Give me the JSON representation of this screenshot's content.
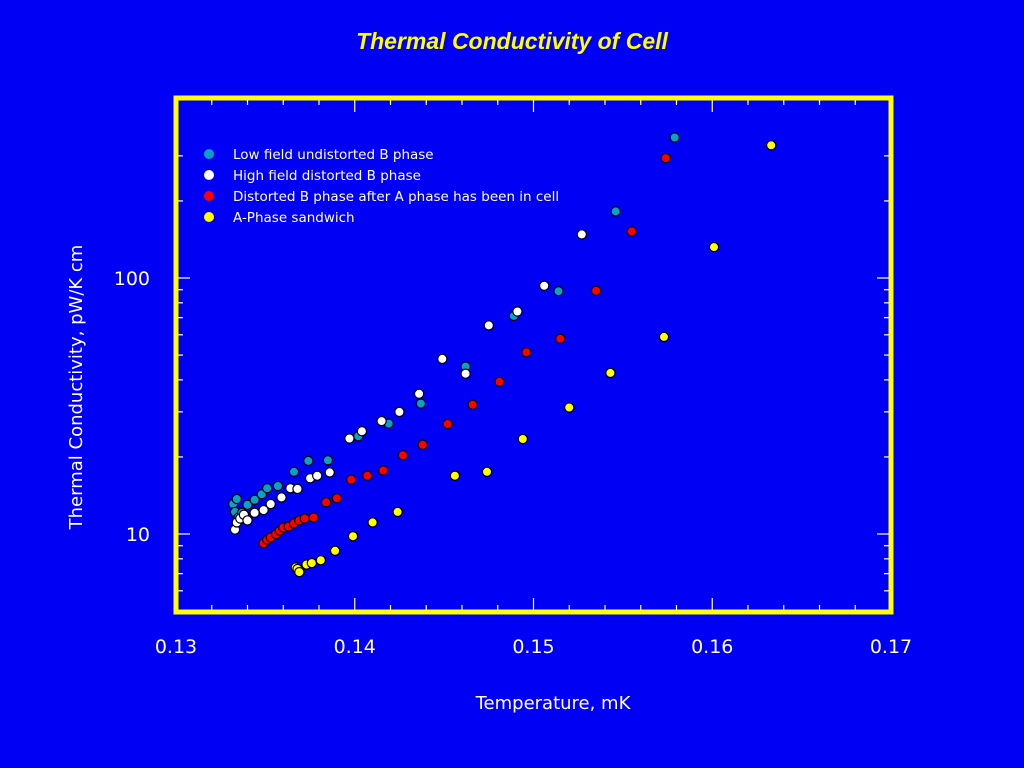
{
  "chart_data": {
    "type": "scatter",
    "title": "Thermal Conductivity of Cell",
    "xlabel": "Temperature, mK",
    "ylabel": "Thermal Conductivity, pW/K cm",
    "xlim": [
      0.13,
      0.17
    ],
    "ylim": [
      5,
      400
    ],
    "y_scale": "log",
    "x_ticks": [
      0.13,
      0.14,
      0.15,
      0.16,
      0.17
    ],
    "x_tick_labels": [
      "0.13",
      "0.14",
      "0.15",
      "0.16",
      "0.17"
    ],
    "y_ticks": [
      10,
      100
    ],
    "y_tick_labels": [
      "10",
      "100"
    ],
    "frame_color": "#ffff00",
    "background_color": "#0000f5",
    "legend_placement": "top-left",
    "series": [
      {
        "name": "Low field undistorted B phase",
        "color": "#0aa0c8",
        "points": [
          [
            0.1332,
            13.1
          ],
          [
            0.1334,
            13.7
          ],
          [
            0.1333,
            12.2
          ],
          [
            0.1335,
            11.6
          ],
          [
            0.1337,
            12.1
          ],
          [
            0.134,
            13.0
          ],
          [
            0.1344,
            13.6
          ],
          [
            0.1348,
            14.3
          ],
          [
            0.1351,
            15.1
          ],
          [
            0.1357,
            15.4
          ],
          [
            0.1366,
            17.5
          ],
          [
            0.1374,
            19.3
          ],
          [
            0.1385,
            19.4
          ],
          [
            0.1402,
            24.1
          ],
          [
            0.1419,
            27.0
          ],
          [
            0.1437,
            32.3
          ],
          [
            0.1462,
            45.1
          ],
          [
            0.1489,
            71.1
          ],
          [
            0.1514,
            88.8
          ],
          [
            0.1546,
            182.0
          ],
          [
            0.1579,
            354.0
          ]
        ]
      },
      {
        "name": "High field distorted B phase",
        "color": "#ffffff",
        "points": [
          [
            0.1333,
            10.4
          ],
          [
            0.1334,
            11.1
          ],
          [
            0.1336,
            11.5
          ],
          [
            0.1338,
            11.9
          ],
          [
            0.134,
            11.3
          ],
          [
            0.1344,
            12.1
          ],
          [
            0.1349,
            12.4
          ],
          [
            0.1353,
            13.1
          ],
          [
            0.1359,
            13.9
          ],
          [
            0.1364,
            15.1
          ],
          [
            0.1368,
            15.0
          ],
          [
            0.1375,
            16.5
          ],
          [
            0.1379,
            16.9
          ],
          [
            0.1386,
            17.4
          ],
          [
            0.1397,
            23.6
          ],
          [
            0.1404,
            25.2
          ],
          [
            0.1415,
            27.6
          ],
          [
            0.1425,
            30.0
          ],
          [
            0.1436,
            35.3
          ],
          [
            0.1449,
            48.3
          ],
          [
            0.1462,
            42.3
          ],
          [
            0.1475,
            65.3
          ],
          [
            0.1491,
            74.0
          ],
          [
            0.1506,
            93.2
          ],
          [
            0.1527,
            148.0
          ]
        ]
      },
      {
        "name": "Distorted B phase after A phase has been in cell",
        "color": "#ff0000",
        "points": [
          [
            0.1349,
            9.2
          ],
          [
            0.1351,
            9.5
          ],
          [
            0.1353,
            9.7
          ],
          [
            0.1356,
            10.0
          ],
          [
            0.1358,
            10.3
          ],
          [
            0.136,
            10.6
          ],
          [
            0.1363,
            10.7
          ],
          [
            0.1366,
            11.0
          ],
          [
            0.1369,
            11.3
          ],
          [
            0.1372,
            11.5
          ],
          [
            0.1377,
            11.6
          ],
          [
            0.1384,
            13.3
          ],
          [
            0.139,
            13.8
          ],
          [
            0.1398,
            16.3
          ],
          [
            0.1407,
            16.9
          ],
          [
            0.1416,
            17.7
          ],
          [
            0.1427,
            20.3
          ],
          [
            0.1438,
            22.3
          ],
          [
            0.1452,
            26.9
          ],
          [
            0.1466,
            32.0
          ],
          [
            0.1481,
            39.3
          ],
          [
            0.1496,
            51.3
          ],
          [
            0.1515,
            57.9
          ],
          [
            0.1535,
            89.1
          ],
          [
            0.1555,
            152.0
          ],
          [
            0.1574,
            294.0
          ]
        ]
      },
      {
        "name": "A-Phase sandwich",
        "color": "#ffff00",
        "points": [
          [
            0.1367,
            7.4
          ],
          [
            0.1368,
            7.3
          ],
          [
            0.1369,
            7.1
          ],
          [
            0.1373,
            7.6
          ],
          [
            0.1376,
            7.7
          ],
          [
            0.1381,
            7.9
          ],
          [
            0.1389,
            8.6
          ],
          [
            0.1399,
            9.8
          ],
          [
            0.141,
            11.1
          ],
          [
            0.1424,
            12.2
          ],
          [
            0.1456,
            16.9
          ],
          [
            0.1474,
            17.5
          ],
          [
            0.1494,
            23.5
          ],
          [
            0.152,
            31.2
          ],
          [
            0.1543,
            42.6
          ],
          [
            0.1573,
            58.9
          ],
          [
            0.1601,
            132.0
          ],
          [
            0.1633,
            330.0
          ]
        ]
      }
    ]
  }
}
